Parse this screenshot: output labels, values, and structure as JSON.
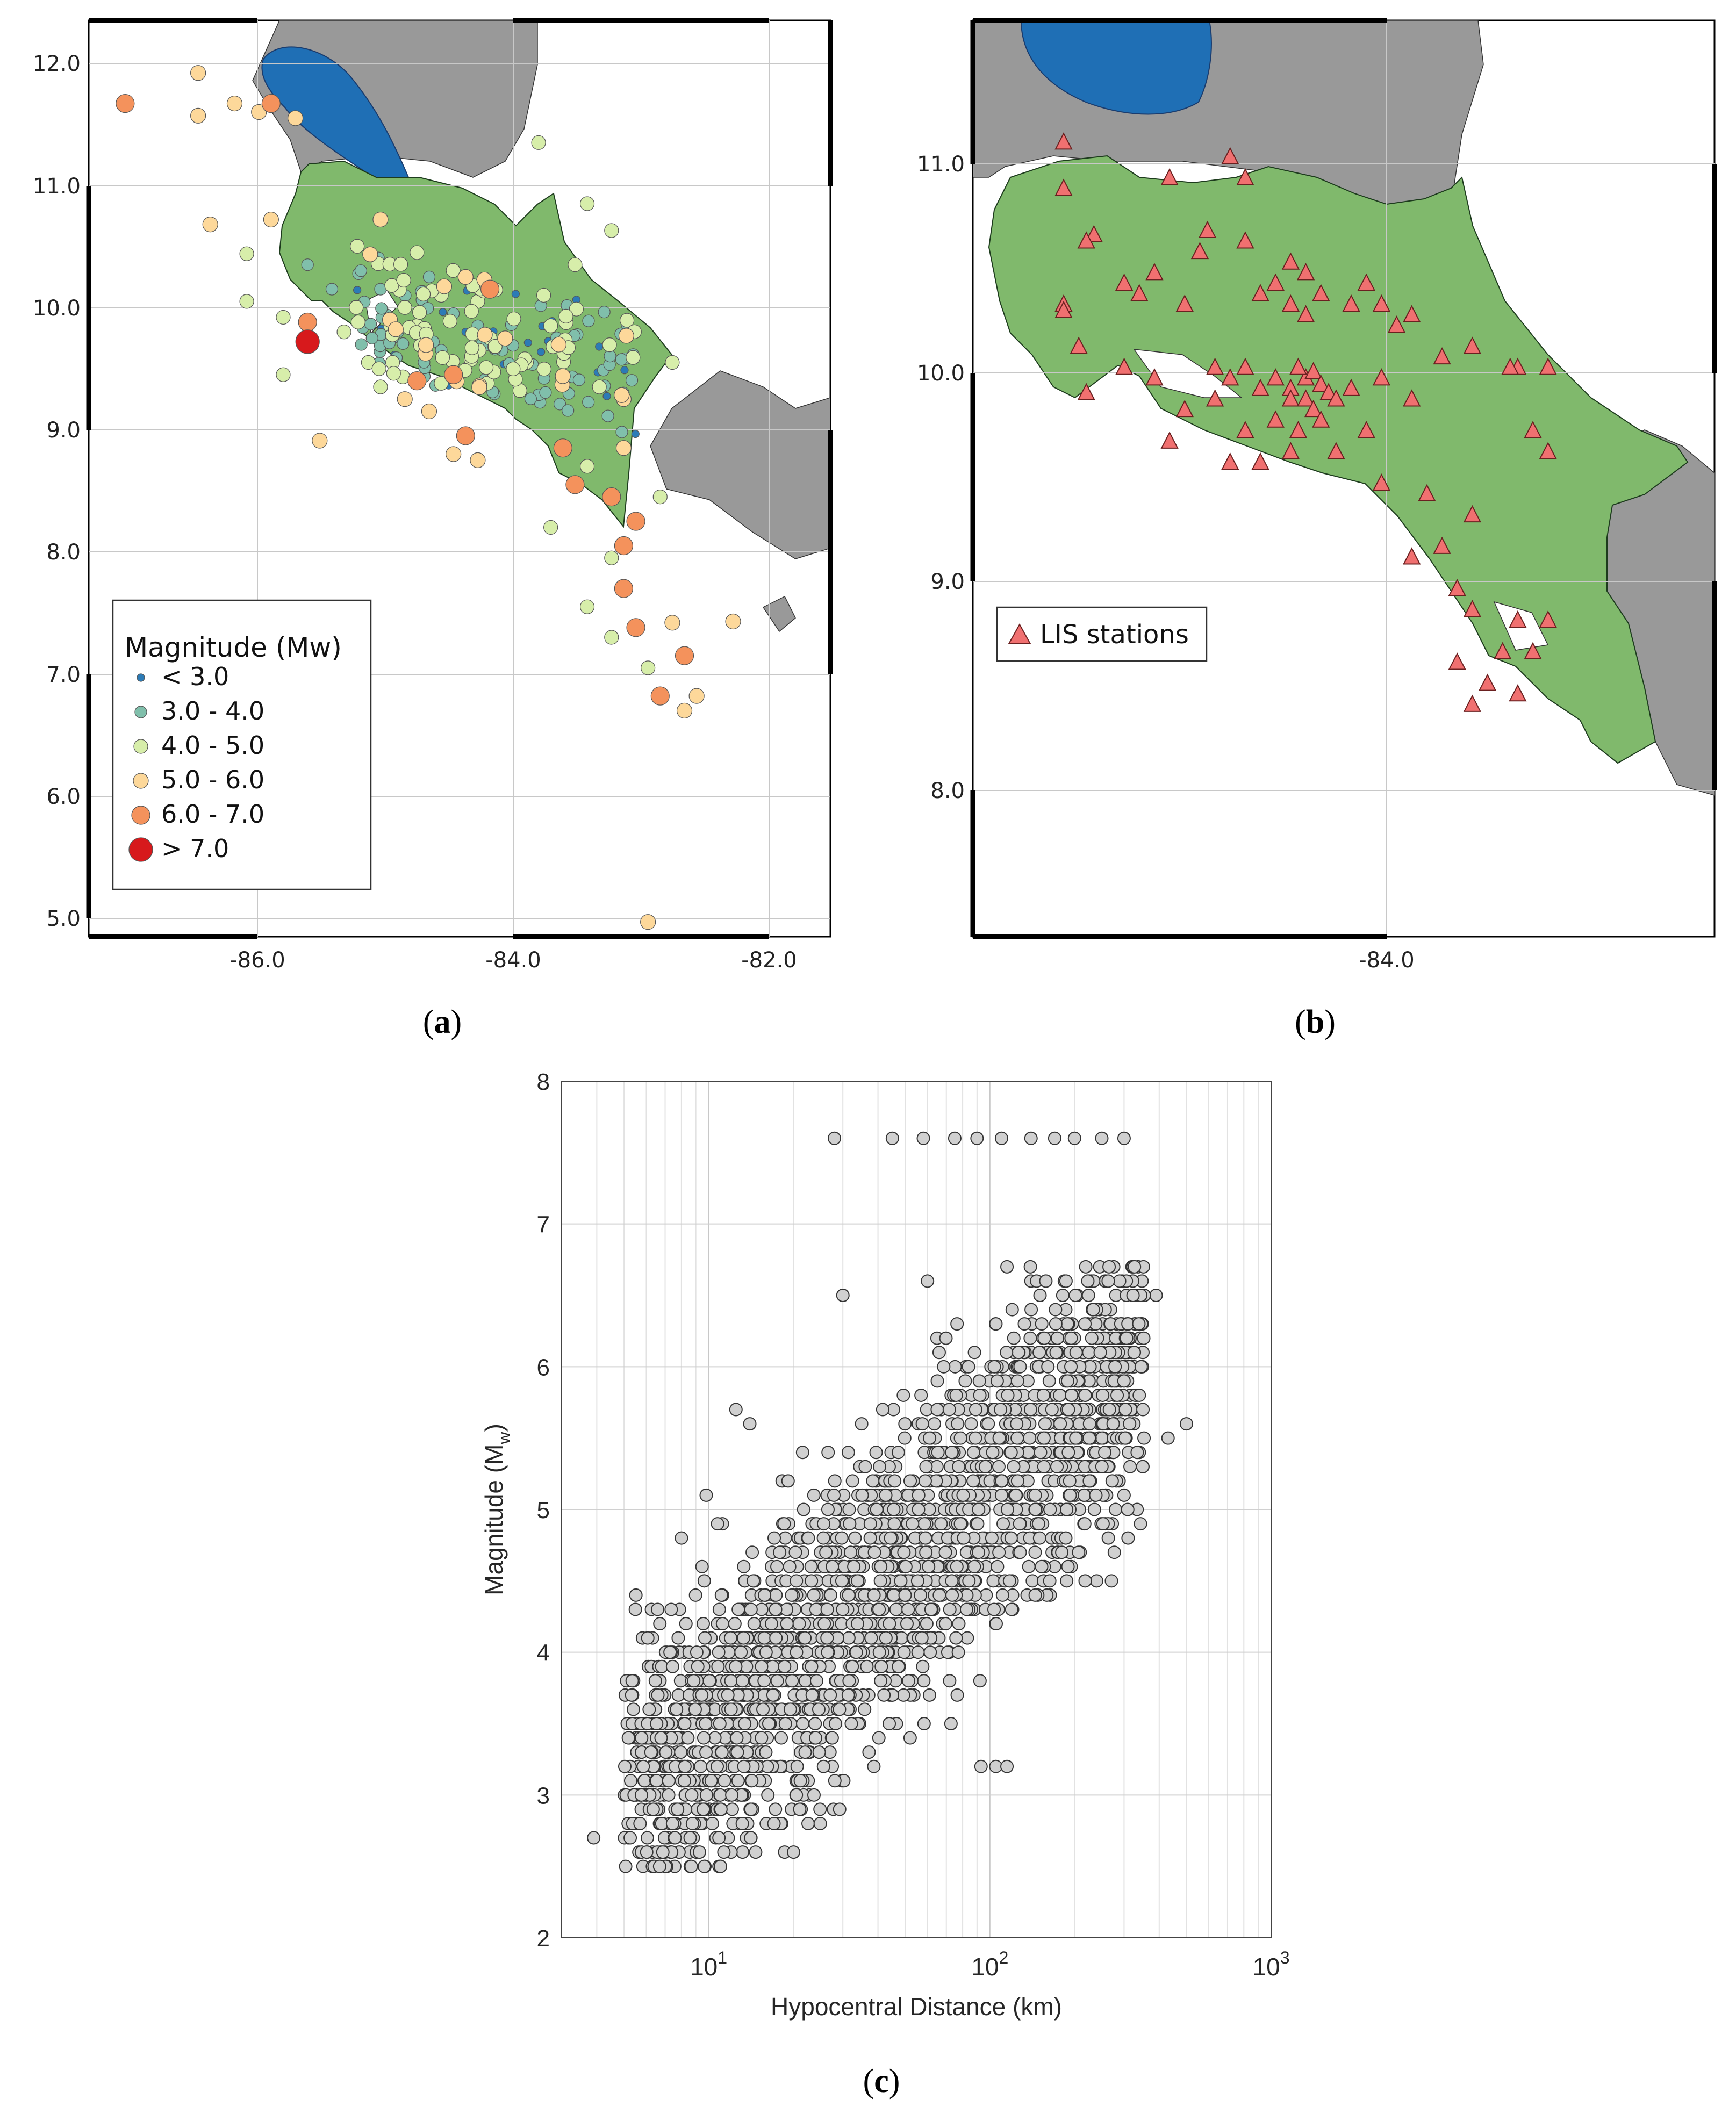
{
  "panels": {
    "a": {
      "label_open": "(",
      "label_letter": "a",
      "label_close": ")",
      "yticks": [
        "12.0",
        "11.0",
        "10.0",
        "9.0",
        "8.0",
        "7.0",
        "6.0",
        "5.0"
      ],
      "xticks": [
        "-86.0",
        "-84.0",
        "-82.0"
      ],
      "legend": {
        "title": "Magnitude (Mw)",
        "items": [
          {
            "label": "< 3.0",
            "color": "#2c7bb6"
          },
          {
            "label": "3.0 - 4.0",
            "color": "#80bfab"
          },
          {
            "label": "4.0 - 5.0",
            "color": "#d7eeaa"
          },
          {
            "label": "5.0 - 6.0",
            "color": "#fdd89a"
          },
          {
            "label": "6.0 - 7.0",
            "color": "#f4925c"
          },
          {
            "label": "> 7.0",
            "color": "#d7191c"
          }
        ]
      }
    },
    "b": {
      "label_open": "(",
      "label_letter": "b",
      "label_close": ")",
      "yticks": [
        "11.0",
        "10.0",
        "9.0",
        "8.0"
      ],
      "xticks": [
        "-84.0"
      ],
      "legend": {
        "items": [
          {
            "label": "LIS stations",
            "color": "#f07070"
          }
        ]
      }
    },
    "c": {
      "label_open": "(",
      "label_letter": "c",
      "label_close": ")"
    }
  },
  "colors": {
    "land": "#80b96c",
    "neighbor": "#999999",
    "lake": "#1f6fb5",
    "marker_grey": "#d0d0d0"
  },
  "chart_data": [
    {
      "type": "scatter",
      "panel": "a",
      "x_range": [
        -87.3,
        -81.2
      ],
      "y_range": [
        4.9,
        12.4
      ],
      "grid": true,
      "legend_position": "bottom-left",
      "points": [
        {
          "x": -87.0,
          "y": 11.72,
          "m": 6.5
        },
        {
          "x": -85.8,
          "y": 11.72,
          "m": 6.5
        },
        {
          "x": -86.4,
          "y": 11.97,
          "m": 5.5
        },
        {
          "x": -86.1,
          "y": 11.72,
          "m": 5.5
        },
        {
          "x": -85.9,
          "y": 11.65,
          "m": 5.5
        },
        {
          "x": -85.6,
          "y": 11.6,
          "m": 5.5
        },
        {
          "x": -86.4,
          "y": 11.62,
          "m": 5.5
        },
        {
          "x": -86.3,
          "y": 10.73,
          "m": 5.5
        },
        {
          "x": -85.8,
          "y": 10.77,
          "m": 5.5
        },
        {
          "x": -85.5,
          "y": 9.77,
          "m": 7.3
        },
        {
          "x": -85.5,
          "y": 9.93,
          "m": 6.2
        },
        {
          "x": -85.4,
          "y": 8.96,
          "m": 5.5
        },
        {
          "x": -86.0,
          "y": 10.49,
          "m": 4.5
        },
        {
          "x": -86.0,
          "y": 10.1,
          "m": 4.5
        },
        {
          "x": -85.7,
          "y": 9.5,
          "m": 4.5
        },
        {
          "x": -85.7,
          "y": 9.97,
          "m": 4.5
        },
        {
          "x": -85.5,
          "y": 10.4,
          "m": 3.5
        },
        {
          "x": -85.3,
          "y": 10.2,
          "m": 3.5
        },
        {
          "x": -85.2,
          "y": 9.85,
          "m": 4.5
        },
        {
          "x": -85.0,
          "y": 9.6,
          "m": 4.5
        },
        {
          "x": -84.9,
          "y": 10.77,
          "m": 5.5
        },
        {
          "x": -84.6,
          "y": 10.5,
          "m": 4.5
        },
        {
          "x": -84.5,
          "y": 10.3,
          "m": 3.5
        },
        {
          "x": -84.4,
          "y": 10.15,
          "m": 4.5
        },
        {
          "x": -84.3,
          "y": 10.0,
          "m": 3.5
        },
        {
          "x": -84.2,
          "y": 9.85,
          "m": 2.8
        },
        {
          "x": -84.1,
          "y": 9.9,
          "m": 3.5
        },
        {
          "x": -84.0,
          "y": 9.8,
          "m": 4.5
        },
        {
          "x": -83.9,
          "y": 9.7,
          "m": 3.5
        },
        {
          "x": -84.1,
          "y": 10.1,
          "m": 4.5
        },
        {
          "x": -84.3,
          "y": 9.5,
          "m": 6.2
        },
        {
          "x": -84.6,
          "y": 9.45,
          "m": 6.2
        },
        {
          "x": -84.2,
          "y": 9.0,
          "m": 6.2
        },
        {
          "x": -84.0,
          "y": 10.2,
          "m": 6.2
        },
        {
          "x": -84.2,
          "y": 10.3,
          "m": 5.5
        },
        {
          "x": -84.5,
          "y": 9.2,
          "m": 5.5
        },
        {
          "x": -84.7,
          "y": 9.3,
          "m": 5.5
        },
        {
          "x": -84.8,
          "y": 9.6,
          "m": 4.5
        },
        {
          "x": -84.9,
          "y": 9.4,
          "m": 4.5
        },
        {
          "x": -84.3,
          "y": 8.85,
          "m": 5.5
        },
        {
          "x": -84.1,
          "y": 8.8,
          "m": 5.5
        },
        {
          "x": -83.7,
          "y": 9.6,
          "m": 4.5
        },
        {
          "x": -83.5,
          "y": 9.9,
          "m": 4.5
        },
        {
          "x": -83.3,
          "y": 10.4,
          "m": 4.5
        },
        {
          "x": -83.0,
          "y": 10.68,
          "m": 4.5
        },
        {
          "x": -83.2,
          "y": 10.9,
          "m": 4.5
        },
        {
          "x": -83.6,
          "y": 11.4,
          "m": 4.5
        },
        {
          "x": -83.1,
          "y": 9.4,
          "m": 4.5
        },
        {
          "x": -82.9,
          "y": 9.3,
          "m": 5.5
        },
        {
          "x": -82.5,
          "y": 9.6,
          "m": 4.5
        },
        {
          "x": -83.3,
          "y": 8.6,
          "m": 6.2
        },
        {
          "x": -83.0,
          "y": 8.5,
          "m": 6.2
        },
        {
          "x": -82.8,
          "y": 8.3,
          "m": 6.2
        },
        {
          "x": -82.9,
          "y": 8.1,
          "m": 6.2
        },
        {
          "x": -82.9,
          "y": 7.75,
          "m": 6.2
        },
        {
          "x": -82.8,
          "y": 7.43,
          "m": 6.2
        },
        {
          "x": -82.4,
          "y": 7.2,
          "m": 6.5
        },
        {
          "x": -82.6,
          "y": 6.87,
          "m": 6.2
        },
        {
          "x": -82.3,
          "y": 6.87,
          "m": 5.5
        },
        {
          "x": -82.4,
          "y": 6.75,
          "m": 5.5
        },
        {
          "x": -82.5,
          "y": 7.47,
          "m": 5.5
        },
        {
          "x": -82.0,
          "y": 7.48,
          "m": 5.5
        },
        {
          "x": -82.7,
          "y": 5.02,
          "m": 5.5
        },
        {
          "x": -82.7,
          "y": 7.1,
          "m": 4.5
        },
        {
          "x": -83.2,
          "y": 7.6,
          "m": 4.5
        },
        {
          "x": -83.0,
          "y": 7.35,
          "m": 4.5
        },
        {
          "x": -83.5,
          "y": 8.25,
          "m": 4.5
        },
        {
          "x": -83.4,
          "y": 8.9,
          "m": 6.2
        },
        {
          "x": -82.9,
          "y": 8.9,
          "m": 5.5
        },
        {
          "x": -82.6,
          "y": 8.5,
          "m": 4.5
        },
        {
          "x": -83.2,
          "y": 8.75,
          "m": 4.5
        },
        {
          "x": -83.0,
          "y": 8.0,
          "m": 4.5
        },
        {
          "x": -84.8,
          "y": 9.8,
          "m": 3.5
        },
        {
          "x": -84.6,
          "y": 9.9,
          "m": 4.5
        },
        {
          "x": -84.4,
          "y": 9.7,
          "m": 3.5
        },
        {
          "x": -84.7,
          "y": 10.05,
          "m": 4.5
        },
        {
          "x": -84.9,
          "y": 10.2,
          "m": 3.5
        },
        {
          "x": -85.1,
          "y": 10.05,
          "m": 4.5
        }
      ]
    },
    {
      "type": "scatter",
      "panel": "b",
      "x_range": [
        -86.2,
        -81.3
      ],
      "y_range": [
        7.3,
        11.65
      ],
      "grid": true,
      "legend_position": "bottom-left",
      "series": [
        {
          "name": "LIS stations",
          "points": [
            [
              -85.6,
              11.07
            ],
            [
              -85.6,
              10.85
            ],
            [
              -85.6,
              10.3
            ],
            [
              -85.6,
              10.27
            ],
            [
              -85.4,
              10.63
            ],
            [
              -85.45,
              10.6
            ],
            [
              -85.5,
              10.1
            ],
            [
              -85.45,
              9.88
            ],
            [
              -85.2,
              10.4
            ],
            [
              -85.2,
              10.0
            ],
            [
              -85.1,
              10.35
            ],
            [
              -85.0,
              10.45
            ],
            [
              -85.0,
              9.95
            ],
            [
              -84.9,
              10.9
            ],
            [
              -84.9,
              9.65
            ],
            [
              -84.8,
              10.3
            ],
            [
              -84.7,
              10.55
            ],
            [
              -84.65,
              10.65
            ],
            [
              -84.5,
              11.0
            ],
            [
              -84.4,
              10.6
            ],
            [
              -84.4,
              10.9
            ],
            [
              -84.1,
              10.5
            ],
            [
              -84.0,
              10.45
            ],
            [
              -84.2,
              10.4
            ],
            [
              -84.3,
              10.35
            ],
            [
              -84.1,
              10.3
            ],
            [
              -84.0,
              10.25
            ],
            [
              -83.9,
              10.35
            ],
            [
              -83.7,
              10.3
            ],
            [
              -83.6,
              10.4
            ],
            [
              -83.5,
              10.3
            ],
            [
              -83.4,
              10.2
            ],
            [
              -83.3,
              10.25
            ],
            [
              -83.1,
              10.05
            ],
            [
              -82.9,
              10.1
            ],
            [
              -82.6,
              10.0
            ],
            [
              -82.65,
              10.0
            ],
            [
              -82.4,
              10.0
            ],
            [
              -84.4,
              9.7
            ],
            [
              -84.6,
              9.85
            ],
            [
              -84.5,
              9.95
            ],
            [
              -84.3,
              9.9
            ],
            [
              -84.2,
              9.95
            ],
            [
              -84.1,
              9.9
            ],
            [
              -84.0,
              9.95
            ],
            [
              -84.05,
              10.0
            ],
            [
              -83.95,
              9.98
            ],
            [
              -83.9,
              9.92
            ],
            [
              -83.85,
              9.88
            ],
            [
              -83.8,
              9.85
            ],
            [
              -84.1,
              9.85
            ],
            [
              -84.0,
              9.85
            ],
            [
              -84.2,
              9.75
            ],
            [
              -83.95,
              9.8
            ],
            [
              -84.05,
              9.7
            ],
            [
              -83.5,
              9.95
            ],
            [
              -83.7,
              9.9
            ],
            [
              -83.3,
              9.85
            ],
            [
              -83.9,
              9.75
            ],
            [
              -83.6,
              9.7
            ],
            [
              -84.1,
              9.6
            ],
            [
              -84.3,
              9.55
            ],
            [
              -84.5,
              9.55
            ],
            [
              -84.8,
              9.8
            ],
            [
              -84.6,
              10.0
            ],
            [
              -84.4,
              10.0
            ],
            [
              -83.8,
              9.6
            ],
            [
              -83.5,
              9.45
            ],
            [
              -83.2,
              9.4
            ],
            [
              -82.9,
              9.3
            ],
            [
              -82.5,
              9.7
            ],
            [
              -82.4,
              9.6
            ],
            [
              -83.1,
              9.15
            ],
            [
              -83.3,
              9.1
            ],
            [
              -83.0,
              8.95
            ],
            [
              -82.9,
              8.85
            ],
            [
              -82.6,
              8.8
            ],
            [
              -82.7,
              8.65
            ],
            [
              -82.4,
              8.8
            ],
            [
              -82.5,
              8.65
            ],
            [
              -82.8,
              8.5
            ],
            [
              -82.9,
              8.4
            ],
            [
              -83.0,
              8.6
            ],
            [
              -82.6,
              8.45
            ]
          ]
        }
      ]
    },
    {
      "type": "scatter",
      "panel": "c",
      "xlabel": "Hypocentral Distance (km)",
      "ylabel_main": "Magnitude (M",
      "ylabel_sub": "w",
      "ylabel_close": ")",
      "x_scale": "log",
      "x_range": [
        3,
        1000
      ],
      "y_range": [
        2,
        8
      ],
      "y_ticks": [
        "2",
        "3",
        "4",
        "5",
        "6",
        "7",
        "8"
      ],
      "x_ticks": [
        {
          "base": "10",
          "exp": "1",
          "value": 10
        },
        {
          "base": "10",
          "exp": "2",
          "value": 100
        },
        {
          "base": "10",
          "exp": "3",
          "value": 1000
        }
      ],
      "grid": true,
      "fixed_points": [
        [
          3.9,
          2.7
        ],
        [
          8.6,
          2.5
        ],
        [
          9.7,
          2.5
        ],
        [
          13.2,
          2.6
        ],
        [
          8.0,
          4.8
        ],
        [
          9.8,
          5.1
        ],
        [
          12.5,
          5.7
        ],
        [
          14.0,
          5.6
        ],
        [
          28,
          7.6
        ],
        [
          45,
          7.6
        ],
        [
          58,
          7.6
        ],
        [
          75,
          7.6
        ],
        [
          90,
          7.6
        ],
        [
          110,
          7.6
        ],
        [
          140,
          7.6
        ],
        [
          170,
          7.6
        ],
        [
          200,
          7.6
        ],
        [
          250,
          7.6
        ],
        [
          300,
          7.6
        ],
        [
          500,
          5.6
        ],
        [
          430,
          5.5
        ],
        [
          350,
          5.3
        ],
        [
          105,
          3.2
        ],
        [
          115,
          3.2
        ],
        [
          93,
          3.2
        ],
        [
          5.2,
          3.5
        ],
        [
          6.2,
          3.0
        ],
        [
          7.0,
          3.4
        ],
        [
          30,
          6.5
        ],
        [
          60,
          6.6
        ],
        [
          115,
          6.7
        ],
        [
          390,
          6.5
        ],
        [
          310,
          4.8
        ]
      ]
    }
  ]
}
